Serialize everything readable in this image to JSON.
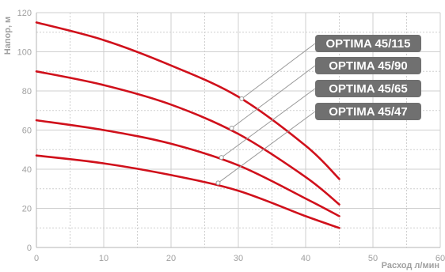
{
  "chart_data": {
    "type": "line",
    "xlabel": "Расход л/мин",
    "ylabel": "Напор, м",
    "xlim": [
      0,
      60
    ],
    "ylim": [
      0,
      120
    ],
    "x_ticks": [
      "0",
      "10",
      "20",
      "30",
      "40",
      "50",
      "60"
    ],
    "y_ticks": [
      "0",
      "20",
      "40",
      "60",
      "80",
      "100",
      "120"
    ],
    "grid": true,
    "legend": "callout labels on the right",
    "colors": {
      "line": "#d0101b",
      "label_bg": "#707070",
      "label_text": "#ffffff",
      "grid": "#cfcfcf",
      "axis_text": "#a0a0a0",
      "leader": "#9a9a9a"
    },
    "series": [
      {
        "name": "OPTIMA 45/115",
        "x": [
          0,
          10,
          20,
          30,
          40,
          45
        ],
        "y": [
          115,
          106,
          93,
          77,
          52,
          35
        ],
        "marker": {
          "x": 30.5,
          "y": 76
        }
      },
      {
        "name": "OPTIMA 45/90",
        "x": [
          0,
          10,
          20,
          30,
          40,
          45
        ],
        "y": [
          90,
          83,
          73,
          58,
          36,
          22
        ],
        "marker": {
          "x": 29,
          "y": 61
        }
      },
      {
        "name": "OPTIMA 45/65",
        "x": [
          0,
          10,
          20,
          30,
          40,
          45
        ],
        "y": [
          65,
          60,
          53,
          42,
          25,
          16
        ],
        "marker": {
          "x": 27.5,
          "y": 46
        }
      },
      {
        "name": "OPTIMA 45/47",
        "x": [
          0,
          10,
          20,
          30,
          40,
          45
        ],
        "y": [
          47,
          43,
          37,
          29,
          16,
          10
        ],
        "marker": {
          "x": 27,
          "y": 33
        }
      }
    ]
  }
}
